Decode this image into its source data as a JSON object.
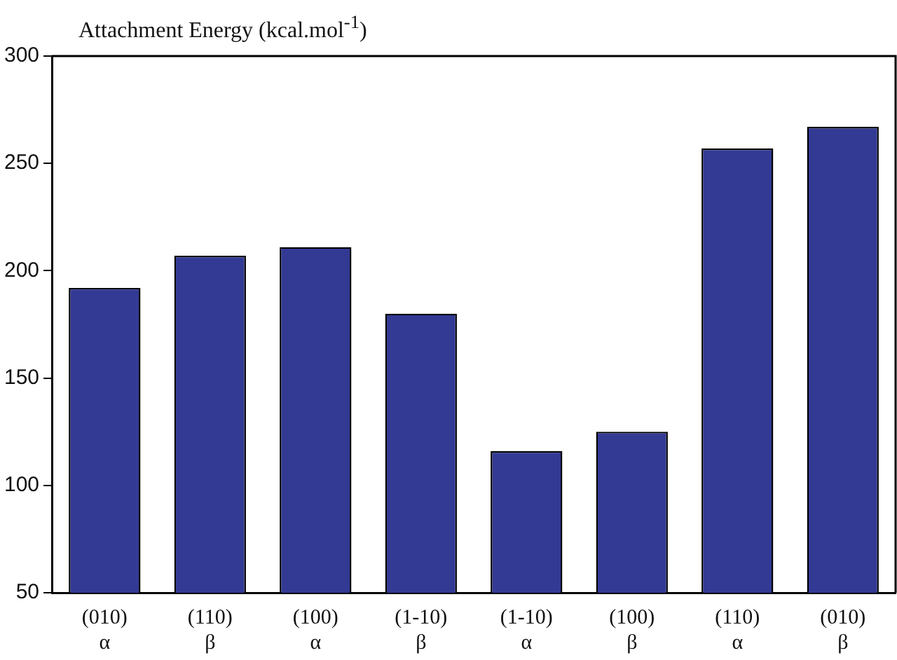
{
  "chart_data": {
    "type": "bar",
    "title": "Attachment Energy (kcal.mol$^{-1}$)",
    "categories": [
      "(010)\nα",
      "(110)\nβ",
      "(100)\nα",
      "(1-10)\nβ",
      "(1-10)\nα",
      "(100)\nβ",
      "(110)\nα",
      "(010)\nβ"
    ],
    "values": [
      192,
      207,
      211,
      180,
      116,
      125,
      257,
      267
    ],
    "color": "#333a94",
    "ylim": [
      50,
      300
    ],
    "yticks": [
      50,
      100,
      150,
      200,
      250,
      300
    ],
    "grid": false,
    "legend": false
  }
}
